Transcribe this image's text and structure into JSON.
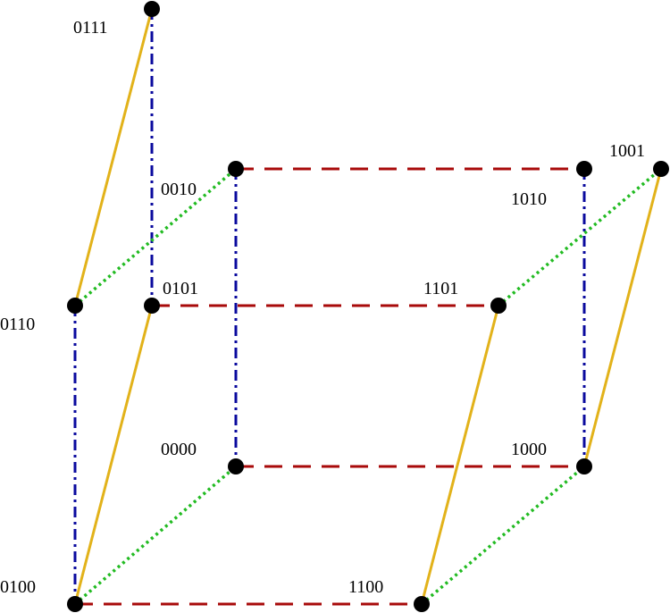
{
  "nodes": [
    {
      "label": "0111"
    },
    {
      "label": "0010"
    },
    {
      "label": "0110"
    },
    {
      "label": "0101"
    },
    {
      "label": "1101"
    },
    {
      "label": "1010"
    },
    {
      "label": "1001"
    },
    {
      "label": "0000"
    },
    {
      "label": "1000"
    },
    {
      "label": "0100"
    },
    {
      "label": "1100"
    }
  ]
}
